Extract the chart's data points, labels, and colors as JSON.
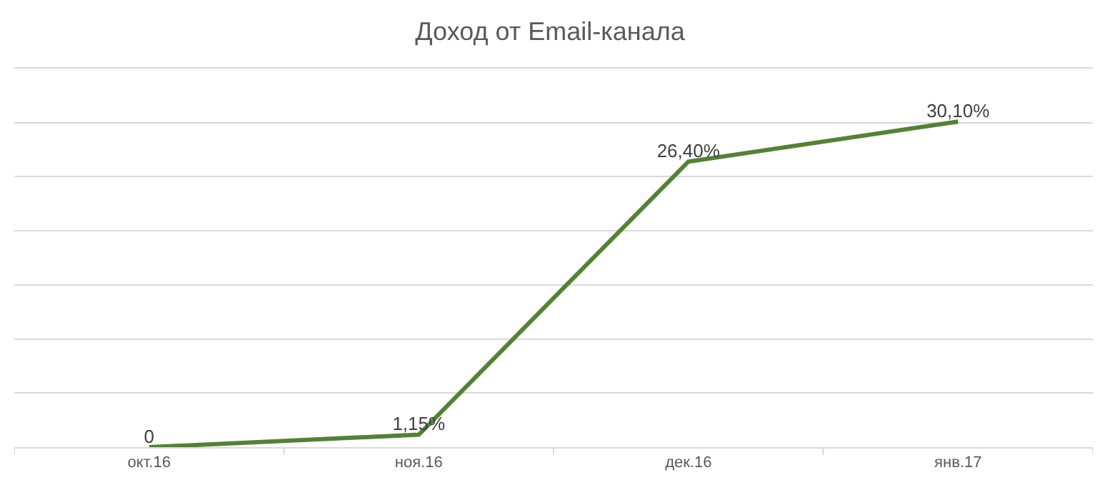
{
  "chart_data": {
    "type": "line",
    "title": "Доход от Email-канала",
    "categories": [
      "окт.16",
      "ноя.16",
      "дек.16",
      "янв.17"
    ],
    "series": [
      {
        "color": "#548235",
        "values": [
          0,
          1.15,
          26.4,
          30.1
        ],
        "value_labels": [
          "0",
          "1,15%",
          "26,40%",
          "30,10%"
        ]
      }
    ],
    "ylim": [
      0,
      35
    ],
    "yticks": [
      {
        "value": 0,
        "label": null
      },
      {
        "value": 5,
        "label": null
      },
      {
        "value": 10,
        "label": null
      },
      {
        "value": 15,
        "label": null
      },
      {
        "value": 20,
        "label": null
      },
      {
        "value": 25,
        "label": null
      },
      {
        "value": 30,
        "label": null
      },
      {
        "value": 35,
        "label": null
      }
    ],
    "grid": "y",
    "tick_labels": "x",
    "marker": "none",
    "line_style": "solid"
  }
}
